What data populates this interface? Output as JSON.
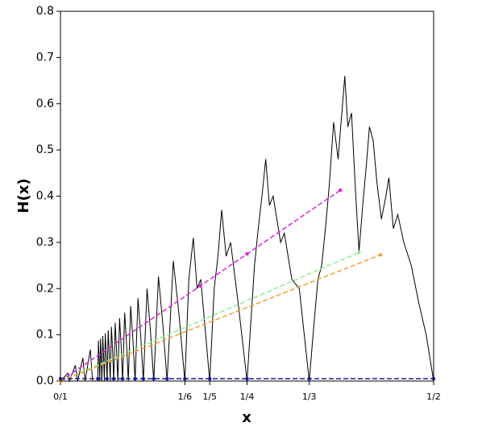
{
  "chart_data": {
    "type": "line",
    "xlabel": "x",
    "ylabel": "H(x)",
    "xlim": [
      0,
      0.5
    ],
    "ylim": [
      0,
      0.8
    ],
    "xticks": [
      {
        "value": 0,
        "label": "0/1"
      },
      {
        "value": 0.1666667,
        "label": "1/6"
      },
      {
        "value": 0.2,
        "label": "1/5"
      },
      {
        "value": 0.25,
        "label": "1/4"
      },
      {
        "value": 0.3333333,
        "label": "1/3"
      },
      {
        "value": 0.5,
        "label": "1/2"
      }
    ],
    "yticks": [
      {
        "value": 0,
        "label": "0.0"
      },
      0.1,
      0.2,
      0.3,
      0.4,
      0.5,
      0.6,
      0.7,
      0.8
    ],
    "series": [
      {
        "color": "#000000",
        "linestyle": "solid",
        "marker": false,
        "x": [
          0,
          0.01,
          0.012,
          0.02,
          0.023,
          0.03,
          0.033,
          0.04,
          0.043,
          0.05,
          0.0509,
          0.0518,
          0.05263,
          0.0537,
          0.0546,
          0.05556,
          0.0567,
          0.0578,
          0.05882,
          0.0601,
          0.0613,
          0.0625,
          0.064,
          0.0653,
          0.06667,
          0.0683,
          0.0699,
          0.07143,
          0.0733,
          0.0751,
          0.07692,
          0.0792,
          0.0813,
          0.08333,
          0.086,
          0.0885,
          0.09091,
          0.0941,
          0.0971,
          0.1,
          0.1039,
          0.1075,
          0.1111,
          0.116,
          0.1205,
          0.125,
          0.1313,
          0.1371,
          0.14286,
          0.1512,
          0.1589,
          0.16667,
          0.172,
          0.178,
          0.183,
          0.188,
          0.2,
          0.206,
          0.211,
          0.216,
          0.222,
          0.228,
          0.238,
          0.25,
          0.26,
          0.265,
          0.27,
          0.275,
          0.28,
          0.285,
          0.295,
          0.3,
          0.31,
          0.32,
          0.33333,
          0.34,
          0.345,
          0.35,
          0.355,
          0.36,
          0.366,
          0.372,
          0.378,
          0.381,
          0.385,
          0.39,
          0.395,
          0.4,
          0.405,
          0.41,
          0.414,
          0.419,
          0.424,
          0.43,
          0.436,
          0.44,
          0.446,
          0.452,
          0.46,
          0.47,
          0.48,
          0.49,
          0.5
        ],
        "values": [
          0,
          0.017,
          0,
          0.034,
          0,
          0.05,
          0,
          0.068,
          0,
          0,
          0.0876,
          0.048,
          0,
          0.092,
          0.051,
          0,
          0.0975,
          0.054,
          0,
          0.1034,
          0.057,
          0,
          0.11,
          0.061,
          0,
          0.1175,
          0.065,
          0,
          0.126,
          0.069,
          0,
          0.136,
          0.075,
          0,
          0.148,
          0.081,
          0,
          0.162,
          0.089,
          0,
          0.179,
          0.098,
          0,
          0.2,
          0.11,
          0,
          0.226,
          0.124,
          0,
          0.26,
          0.143,
          0,
          0.22,
          0.31,
          0.2,
          0.22,
          0,
          0.2,
          0.27,
          0.37,
          0.27,
          0.3,
          0.17,
          0,
          0.25,
          0.33,
          0.4,
          0.48,
          0.38,
          0.4,
          0.3,
          0.32,
          0.22,
          0.2,
          0,
          0.13,
          0.22,
          0.25,
          0.33,
          0.42,
          0.56,
          0.48,
          0.6,
          0.66,
          0.55,
          0.58,
          0.42,
          0.28,
          0.38,
          0.47,
          0.55,
          0.52,
          0.43,
          0.35,
          0.4,
          0.44,
          0.33,
          0.36,
          0.3,
          0.25,
          0.17,
          0.1,
          0
        ]
      },
      {
        "color": "#dd22dd",
        "linestyle": "dashed",
        "marker": true,
        "x": [
          0,
          0.1875,
          0.25,
          0.375
        ],
        "values": [
          0,
          0.206,
          0.275,
          0.413
        ]
      },
      {
        "color": "#90ee90",
        "linestyle": "dashed",
        "marker": true,
        "x": [
          0,
          0.4
        ],
        "values": [
          0,
          0.278
        ]
      },
      {
        "color": "#f0a030",
        "linestyle": "dashed",
        "marker": true,
        "x": [
          0,
          0.4287
        ],
        "values": [
          0,
          0.273
        ]
      },
      {
        "color": "#1a1aa0",
        "linestyle": "dashed",
        "marker": true,
        "x": [
          0,
          0.05,
          0.0625,
          0.0714,
          0.0833,
          0.1,
          0.1111,
          0.125,
          0.1429,
          0.1667,
          0.2,
          0.25,
          0.3333,
          0.5
        ],
        "values": [
          0.005,
          0.005,
          0.005,
          0.005,
          0.005,
          0.005,
          0.005,
          0.005,
          0.005,
          0.005,
          0.005,
          0.005,
          0.005,
          0.005
        ]
      }
    ]
  }
}
